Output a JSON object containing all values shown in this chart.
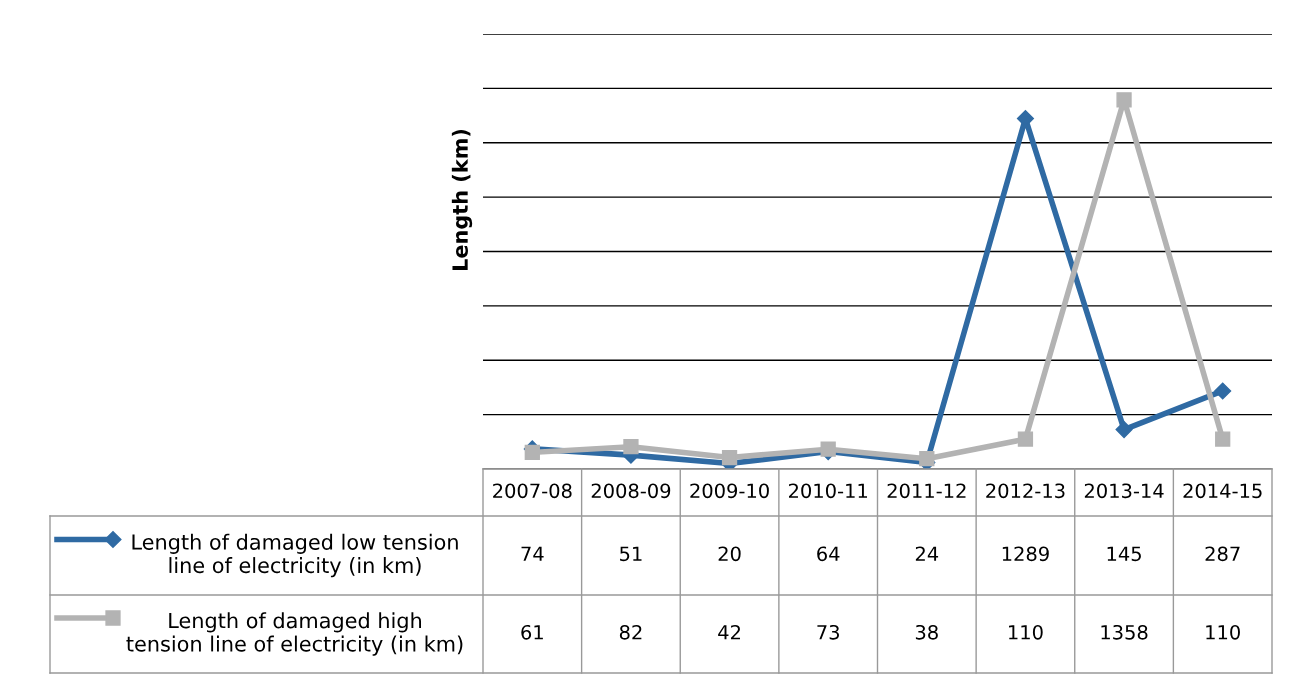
{
  "chart_data": {
    "type": "line",
    "ylabel": "Length (km)",
    "categories": [
      "2007-08",
      "2008-09",
      "2009-10",
      "2010-11",
      "2011-12",
      "2012-13",
      "2013-14",
      "2014-15"
    ],
    "series": [
      {
        "name": "Length of damaged low tension\nline of electricity (in km)",
        "color": "#2f6aa3",
        "marker": "diamond",
        "values": [
          74,
          51,
          20,
          64,
          24,
          1289,
          145,
          287
        ]
      },
      {
        "name": "Length of damaged high\ntension line of electricity (in km)",
        "color": "#b3b3b3",
        "marker": "square",
        "values": [
          61,
          82,
          42,
          73,
          38,
          110,
          1358,
          110
        ]
      }
    ],
    "ylim": [
      0,
      1600
    ],
    "yticks": [
      {
        "value": 0,
        "label": null
      },
      {
        "value": 200,
        "label": null
      },
      {
        "value": 400,
        "label": null
      },
      {
        "value": 600,
        "label": null
      },
      {
        "value": 800,
        "label": null
      },
      {
        "value": 1000,
        "label": null
      },
      {
        "value": 1200,
        "label": null
      },
      {
        "value": 1400,
        "label": null
      },
      {
        "value": 1600,
        "label": null
      }
    ],
    "grid": "y",
    "data_labels": true,
    "legend": "bottom left",
    "line_style": "solid"
  }
}
